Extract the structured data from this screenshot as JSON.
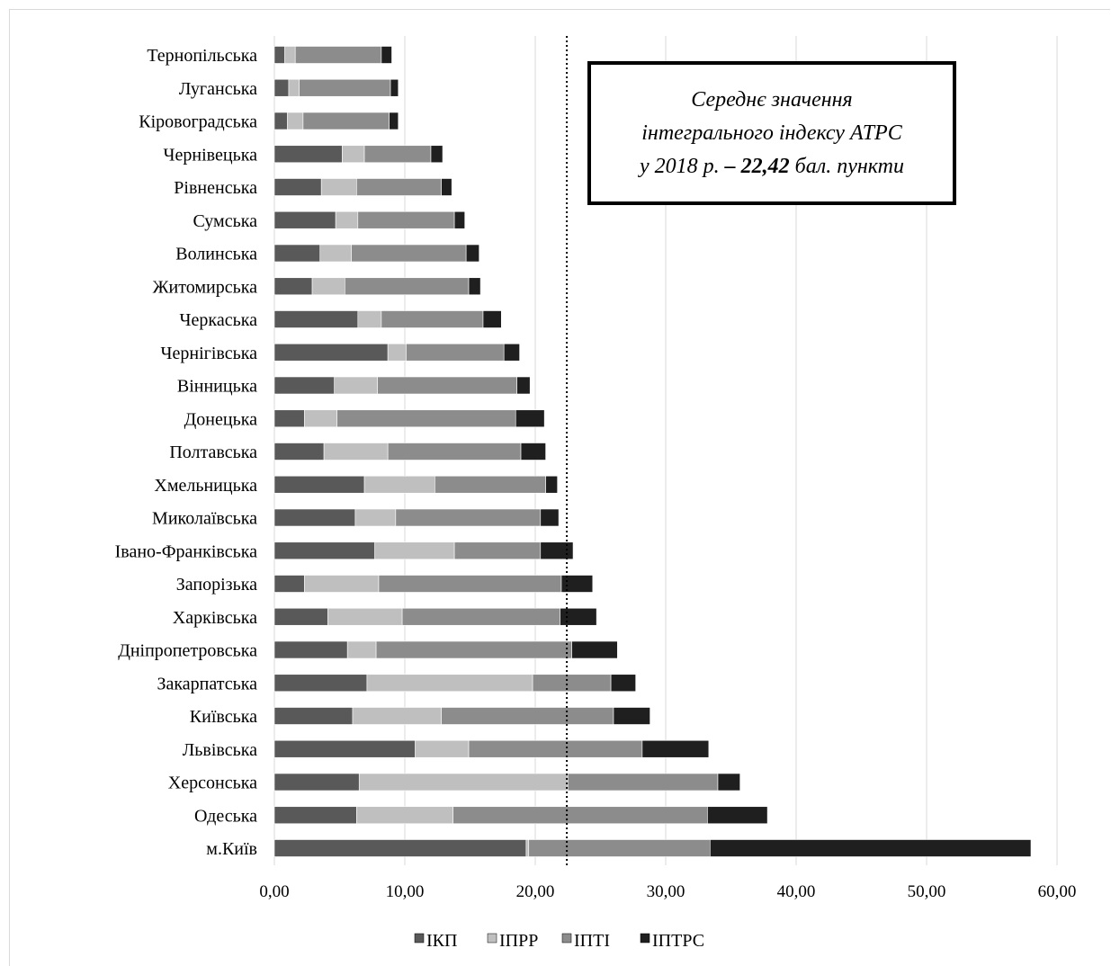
{
  "chart_data": {
    "type": "bar",
    "orientation": "horizontal",
    "stacked": true,
    "categories": [
      "Тернопільська",
      "Луганська",
      "Кіровоградська",
      "Чернівецька",
      "Рівненська",
      "Сумська",
      "Волинська",
      "Житомирська",
      "Черкаська",
      "Чернігівська",
      "Вінницька",
      "Донецька",
      "Полтавська",
      "Хмельницька",
      "Миколаївська",
      "Івано-Франківська",
      "Запорізька",
      "Харківська",
      "Дніпропетровська",
      "Закарпатська",
      "Київська",
      "Львівська",
      "Херсонська",
      "Одеська",
      "м.Київ"
    ],
    "series": [
      {
        "name": "ІКП",
        "color": "#595959",
        "values": [
          0.8,
          1.1,
          1.0,
          5.2,
          3.6,
          4.7,
          3.5,
          2.9,
          6.4,
          8.7,
          4.6,
          2.3,
          3.8,
          6.9,
          6.2,
          7.7,
          2.3,
          4.1,
          5.6,
          7.1,
          6.0,
          10.8,
          6.5,
          6.3,
          19.3
        ]
      },
      {
        "name": "ІПРР",
        "color": "#bfbfbf",
        "values": [
          0.8,
          0.8,
          1.2,
          1.7,
          2.7,
          1.7,
          2.4,
          2.5,
          1.8,
          1.4,
          3.3,
          2.5,
          4.9,
          5.4,
          3.1,
          6.1,
          5.7,
          5.7,
          2.2,
          12.7,
          6.8,
          4.1,
          16.0,
          7.4,
          0.2
        ]
      },
      {
        "name": "ІПТІ",
        "color": "#8c8c8c",
        "values": [
          6.6,
          7.0,
          6.6,
          5.1,
          6.5,
          7.4,
          8.8,
          9.5,
          7.8,
          7.5,
          10.7,
          13.7,
          10.2,
          8.5,
          11.1,
          6.6,
          14.0,
          12.1,
          15.0,
          6.0,
          13.2,
          13.3,
          11.5,
          19.5,
          13.9
        ]
      },
      {
        "name": "ІПТРС",
        "color": "#1f1f1f",
        "values": [
          0.8,
          0.6,
          0.7,
          0.9,
          0.8,
          0.8,
          1.0,
          0.9,
          1.4,
          1.2,
          1.0,
          2.2,
          1.9,
          0.9,
          1.4,
          2.5,
          2.4,
          2.8,
          3.5,
          1.9,
          2.8,
          5.1,
          1.7,
          4.6,
          24.6
        ]
      }
    ],
    "xlim": [
      0,
      60
    ],
    "x_ticks": [
      "0,00",
      "10,00",
      "20,00",
      "30,00",
      "40,00",
      "50,00",
      "60,00"
    ],
    "x_tick_values": [
      0,
      10,
      20,
      30,
      40,
      50,
      60
    ],
    "reference_line": {
      "value": 22.42,
      "style": "dotted"
    },
    "grid": "vertical",
    "legend_position": "bottom",
    "annotation": {
      "line1": "Середнє значення",
      "line2": "інтегрального індексу АТРС",
      "line3_prefix": "у 2018 р.",
      "line3_bold": "– 22,42",
      "line3_suffix": "бал. пункти"
    }
  }
}
